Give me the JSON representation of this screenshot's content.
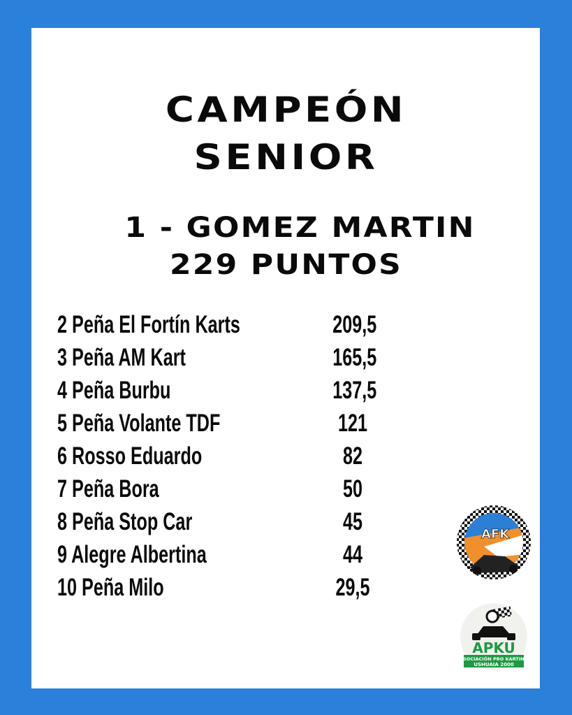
{
  "title_line1": "CAMPEÓN",
  "title_line2": "SENIOR",
  "winner": "1 - GOMEZ MARTIN",
  "winner_points": "229 PUNTOS",
  "standings": [
    {
      "name": "2 Peña El Fortín Karts",
      "points": "209,5"
    },
    {
      "name": "3 Peña AM Kart",
      "points": "165,5"
    },
    {
      "name": "4 Peña Burbu",
      "points": "137,5"
    },
    {
      "name": "5 Peña Volante TDF",
      "points": "121"
    },
    {
      "name": "6 Rosso Eduardo",
      "points": "82"
    },
    {
      "name": "7 Peña Bora",
      "points": "50"
    },
    {
      "name": "8 Peña Stop Car",
      "points": "45"
    },
    {
      "name": "9 Alegre Albertina",
      "points": "44"
    },
    {
      "name": "10 Peña Milo",
      "points": "29,5"
    }
  ],
  "logos": {
    "afk": "AFK",
    "apku": "APKU",
    "apku_sub1": "ASOCIACIÓN PRO KARTING",
    "apku_sub2": "USHUAIA 2000"
  },
  "colors": {
    "background": "#2b80d9",
    "panel": "#ffffff",
    "text": "#0a0a0a"
  }
}
